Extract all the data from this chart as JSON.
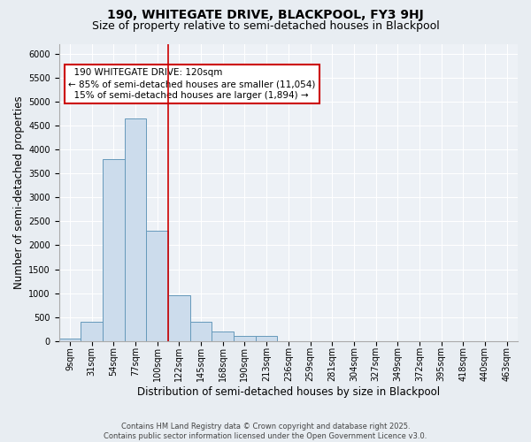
{
  "title1": "190, WHITEGATE DRIVE, BLACKPOOL, FY3 9HJ",
  "title2": "Size of property relative to semi-detached houses in Blackpool",
  "xlabel": "Distribution of semi-detached houses by size in Blackpool",
  "ylabel": "Number of semi-detached properties",
  "footnote": "Contains HM Land Registry data © Crown copyright and database right 2025.\nContains public sector information licensed under the Open Government Licence v3.0.",
  "bar_labels": [
    "9sqm",
    "31sqm",
    "54sqm",
    "77sqm",
    "100sqm",
    "122sqm",
    "145sqm",
    "168sqm",
    "190sqm",
    "213sqm",
    "236sqm",
    "259sqm",
    "281sqm",
    "304sqm",
    "327sqm",
    "349sqm",
    "372sqm",
    "395sqm",
    "418sqm",
    "440sqm",
    "463sqm"
  ],
  "bar_values": [
    50,
    400,
    3800,
    4650,
    2300,
    950,
    400,
    200,
    100,
    100,
    0,
    0,
    0,
    0,
    0,
    0,
    0,
    0,
    0,
    0,
    0
  ],
  "bar_color": "#ccdcec",
  "bar_edgecolor": "#6699bb",
  "vline_color": "#cc0000",
  "property_label": "190 WHITEGATE DRIVE: 120sqm",
  "pct_smaller": 85,
  "n_smaller": 11054,
  "pct_larger": 15,
  "n_larger": 1894,
  "annotation_box_color": "#cc0000",
  "ylim": [
    0,
    6200
  ],
  "yticks": [
    0,
    500,
    1000,
    1500,
    2000,
    2500,
    3000,
    3500,
    4000,
    4500,
    5000,
    5500,
    6000
  ],
  "bg_color": "#e8edf2",
  "plot_bg_color": "#edf1f6",
  "grid_color": "#ffffff",
  "title_fontsize": 10,
  "subtitle_fontsize": 9,
  "axis_label_fontsize": 8.5,
  "tick_fontsize": 7,
  "annotation_fontsize": 7.5,
  "footnote_fontsize": 6
}
